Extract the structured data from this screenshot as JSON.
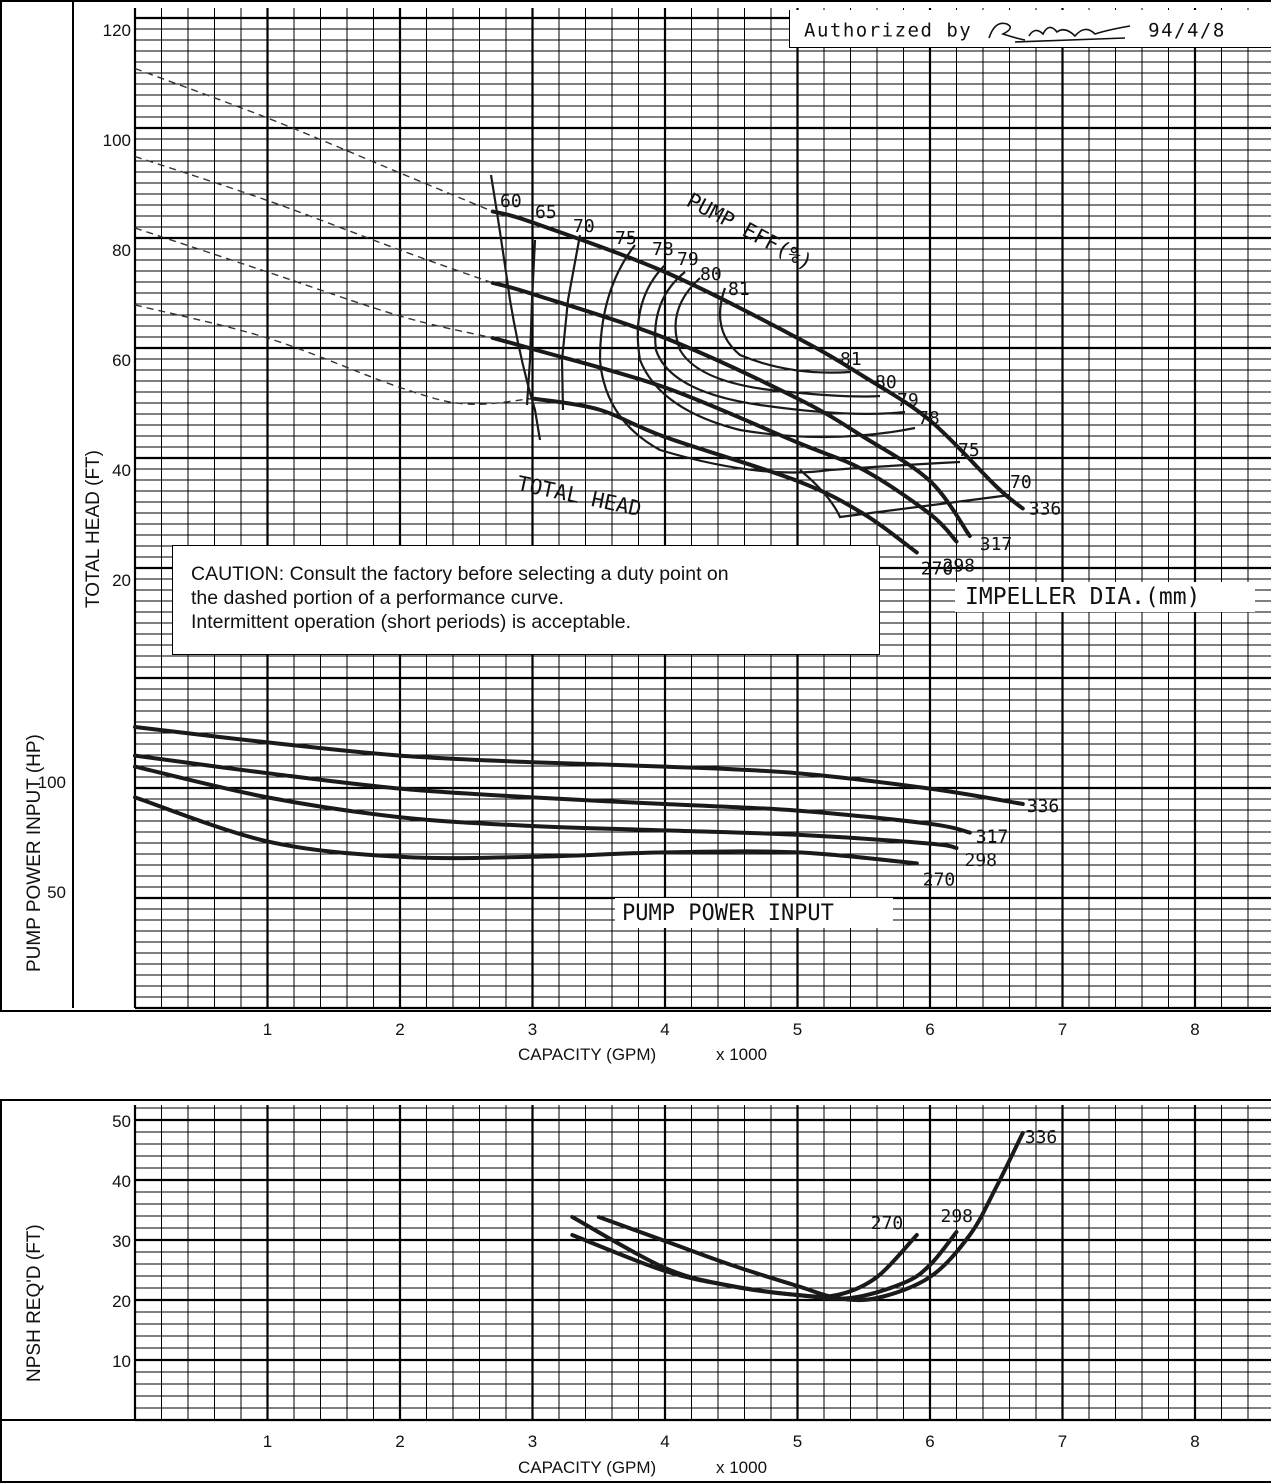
{
  "header": {
    "authorized_prefix": "Authorized by",
    "authorized_date": "94/4/8"
  },
  "caution": {
    "line1": "CAUTION: Consult the factory before selecting a duty point on",
    "line2": "the dashed portion of a performance curve.",
    "line3": "Intermittent operation (short periods) is acceptable."
  },
  "chart_data": [
    {
      "type": "line",
      "panel": "head",
      "ylabel": "TOTAL HEAD (FT)",
      "xlabel": "CAPACITY (GPM)",
      "xunit": "x 1000",
      "xlim": [
        0,
        8
      ],
      "ylim": [
        0,
        120
      ],
      "y_ticks": [
        20,
        40,
        60,
        80,
        100,
        120
      ],
      "x_ticks": [
        1,
        2,
        3,
        4,
        5,
        6,
        7,
        8
      ],
      "annotations": [
        "TOTAL HEAD",
        "PUMP EFF(%)",
        "IMPELLER DIA.(mm)"
      ],
      "series": [
        {
          "name": "336",
          "x": [
            2.7,
            3.0,
            4.0,
            5.0,
            5.5,
            6.0,
            6.5,
            6.7
          ],
          "y": [
            87,
            85,
            76,
            64,
            57,
            49,
            37,
            33
          ],
          "dashed_x": [
            0,
            1.0,
            2.0,
            2.7
          ],
          "dashed_y": [
            113,
            104,
            94,
            87
          ]
        },
        {
          "name": "317",
          "x": [
            2.7,
            3.0,
            4.0,
            5.0,
            5.5,
            6.0,
            6.3
          ],
          "y": [
            74,
            72,
            64,
            53,
            46,
            38,
            28
          ],
          "dashed_x": [
            0,
            1.0,
            2.0,
            2.7
          ],
          "dashed_y": [
            97,
            89,
            80,
            74
          ]
        },
        {
          "name": "298",
          "x": [
            2.7,
            3.0,
            4.0,
            5.0,
            5.5,
            6.0,
            6.2
          ],
          "y": [
            64,
            62,
            55,
            45,
            40,
            32,
            27
          ],
          "dashed_x": [
            0,
            1.0,
            2.0,
            2.7
          ],
          "dashed_y": [
            84,
            76,
            68,
            64
          ]
        },
        {
          "name": "270",
          "x": [
            3.0,
            3.5,
            4.0,
            5.0,
            5.5,
            5.9
          ],
          "y": [
            53,
            51,
            46,
            38,
            32,
            25
          ],
          "dashed_x": [
            0,
            1.0,
            2.0,
            2.5,
            3.0
          ],
          "dashed_y": [
            70,
            64,
            55,
            52,
            53
          ]
        }
      ],
      "efficiency_labels": [
        "60",
        "65",
        "70",
        "75",
        "78",
        "79",
        "80",
        "81",
        "81",
        "80",
        "79",
        "78",
        "75",
        "70"
      ]
    },
    {
      "type": "line",
      "panel": "power",
      "ylabel": "PUMP POWER INPUT (HP)",
      "y_ticks": [
        50,
        100
      ],
      "annotation": "PUMP POWER INPUT",
      "series": [
        {
          "name": "336",
          "x": [
            0,
            1.0,
            2.0,
            3.0,
            4.0,
            5.0,
            6.0,
            6.7
          ],
          "y": [
            125,
            118,
            112,
            109,
            107,
            104,
            97,
            90
          ]
        },
        {
          "name": "317",
          "x": [
            0,
            1.0,
            2.0,
            3.0,
            4.0,
            5.0,
            6.0,
            6.3
          ],
          "y": [
            112,
            104,
            97,
            93,
            90,
            87,
            81,
            77
          ]
        },
        {
          "name": "298",
          "x": [
            0,
            1.0,
            2.0,
            3.0,
            4.0,
            5.0,
            6.0,
            6.2
          ],
          "y": [
            107,
            93,
            84,
            80,
            78,
            76,
            72,
            70
          ]
        },
        {
          "name": "270",
          "x": [
            0,
            1.0,
            2.0,
            3.0,
            4.0,
            5.0,
            5.9
          ],
          "y": [
            93,
            73,
            66,
            66,
            68,
            68,
            63
          ]
        }
      ]
    },
    {
      "type": "line",
      "panel": "npsh",
      "ylabel": "NPSH REQ'D (FT)",
      "xlabel": "CAPACITY (GPM)",
      "xunit": "x 1000",
      "xlim": [
        0,
        8
      ],
      "ylim": [
        0,
        52
      ],
      "y_ticks": [
        10,
        20,
        30,
        40,
        50
      ],
      "x_ticks": [
        1,
        2,
        3,
        4,
        5,
        6,
        7,
        8
      ],
      "series": [
        {
          "name": "336",
          "x": [
            3.5,
            4.0,
            4.5,
            5.0,
            5.3,
            5.6,
            6.0,
            6.3,
            6.5,
            6.7
          ],
          "y": [
            34,
            30,
            26,
            22.5,
            20.5,
            20.5,
            24,
            31,
            39,
            48
          ]
        },
        {
          "name": "298",
          "x": [
            3.3,
            4.0,
            4.5,
            5.0,
            5.4,
            5.8,
            6.0,
            6.2
          ],
          "y": [
            31,
            25,
            22.5,
            21,
            20.5,
            23,
            26,
            31.5
          ]
        },
        {
          "name": "270",
          "x": [
            3.3,
            4.0,
            4.5,
            5.0,
            5.3,
            5.6,
            5.9
          ],
          "y": [
            34,
            25.5,
            22.5,
            21,
            21,
            24,
            31
          ]
        }
      ]
    }
  ]
}
